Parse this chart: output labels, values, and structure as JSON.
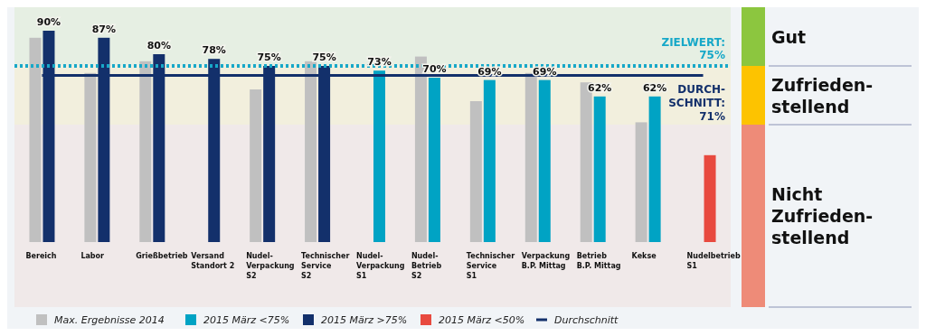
{
  "chart_data": {
    "type": "bar",
    "categories": [
      "Bereich",
      "Labor",
      "Grießbetrieb",
      "Versand\nStandort 2",
      "Nudel-\nVerpackung\nS2",
      "Technischer\nService\nS2",
      "Nudel-\nVerpackung\nS1",
      "Nudel-\nBetrieb\nS2",
      "Technischer\nService\nS1",
      "Verpackung\nB.P. Mittag",
      "Betrieb\nB.P. Mittag",
      "Kekse",
      "Nudelbetrieb\nS1"
    ],
    "series": [
      {
        "name": "Max. Ergebnisse 2014",
        "color": "#c0c0c0",
        "values": [
          87,
          72,
          77,
          null,
          65,
          77,
          null,
          79,
          60,
          72,
          68,
          51,
          null
        ]
      },
      {
        "name": "2015 März <75%",
        "color": "#00a3c4",
        "values": [
          null,
          null,
          null,
          null,
          null,
          null,
          73,
          70,
          69,
          69,
          62,
          62,
          null
        ],
        "value_labels": [
          null,
          null,
          null,
          null,
          null,
          null,
          "73%",
          "70%",
          "69%",
          "69%",
          "62%",
          "62%",
          null
        ]
      },
      {
        "name": "2015 März >75%",
        "color": "#13306b",
        "values": [
          90,
          87,
          80,
          78,
          75,
          75,
          null,
          null,
          null,
          null,
          null,
          null,
          null
        ],
        "value_labels": [
          "90%",
          "87%",
          "80%",
          "78%",
          "75%",
          "75%",
          null,
          null,
          null,
          null,
          null,
          null,
          null
        ]
      },
      {
        "name": "2015 März <50%",
        "color": "#e84a3f",
        "values": [
          null,
          null,
          null,
          null,
          null,
          null,
          null,
          null,
          null,
          null,
          null,
          null,
          37
        ]
      },
      {
        "name": "Durchschnitt",
        "type": "line",
        "color": "#13306b",
        "values": [
          71,
          71,
          71,
          71,
          71,
          71,
          71,
          71,
          71,
          71,
          71,
          71,
          71
        ]
      }
    ],
    "ylim": [
      0,
      100
    ],
    "ref_lines": [
      {
        "axis": "y",
        "value": 75,
        "label": "ZIELWERT:\n75%",
        "color": "#17a8c8",
        "line_style": "dotted"
      }
    ],
    "bands": [
      {
        "axis": "y",
        "from": 75,
        "to": 100,
        "label": "Gut",
        "color": "#8cc63f"
      },
      {
        "axis": "y",
        "from": 50,
        "to": 75,
        "label": "Zufrieden-\nstellend",
        "color": "#fdc300"
      },
      {
        "axis": "y",
        "from": 0,
        "to": 50,
        "label": "Nicht\nZufrieden-\nstellend",
        "color": "#ee8b78"
      }
    ],
    "annotations": [
      "DURCH-\nSCHNITT:\n71%"
    ],
    "legend": "bottom"
  }
}
